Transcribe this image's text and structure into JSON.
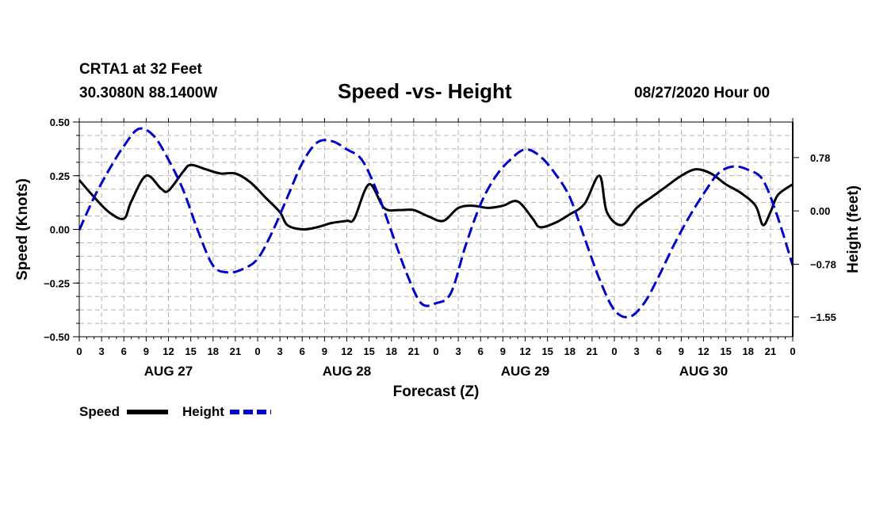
{
  "header": {
    "station": "CRTA1 at 32 Feet",
    "coords": "30.3080N 88.1400W",
    "title": "Speed -vs- Height",
    "datetime": "08/27/2020 Hour 00"
  },
  "colors": {
    "speed": "#000000",
    "height": "#0000cc",
    "grid": "#b4b4b4"
  },
  "chart_data": {
    "type": "line",
    "title": "Speed -vs- Height",
    "xlabel": "Forecast (Z)",
    "ylabel": "Speed (Knots)",
    "y2label": "Height (feet)",
    "xlim": [
      0,
      96
    ],
    "ylim": [
      -0.5,
      0.5
    ],
    "y2lim": [
      -1.84,
      1.3
    ],
    "x_tick_labels": [
      "0",
      "3",
      "6",
      "9",
      "12",
      "15",
      "18",
      "21",
      "0",
      "3",
      "6",
      "9",
      "12",
      "15",
      "18",
      "21",
      "0",
      "3",
      "6",
      "9",
      "12",
      "15",
      "18",
      "21",
      "0",
      "3",
      "6",
      "9",
      "12",
      "15",
      "18",
      "21",
      "0"
    ],
    "day_labels": [
      {
        "label": "AUG 27",
        "hour": 12
      },
      {
        "label": "AUG 28",
        "hour": 36
      },
      {
        "label": "AUG 29",
        "hour": 60
      },
      {
        "label": "AUG 30",
        "hour": 84
      }
    ],
    "y_ticks": [
      "0.50",
      "0.25",
      "0.00",
      "−0.25",
      "−0.50"
    ],
    "y_tick_values": [
      0.5,
      0.25,
      0.0,
      -0.25,
      -0.5
    ],
    "y2_ticks": [
      "0.78",
      "0.00",
      "−0.78",
      "−1.55"
    ],
    "y2_tick_values": [
      0.78,
      0.0,
      -0.78,
      -1.55
    ],
    "grid": true,
    "legend_placement": "bottom-left",
    "series": [
      {
        "name": "Speed",
        "axis": "left",
        "style": "solid",
        "x": [
          0,
          2,
          4,
          6,
          7,
          9,
          11,
          12,
          14,
          15,
          17,
          19,
          21,
          23,
          25,
          27,
          28,
          30,
          32,
          34,
          36,
          37,
          39,
          41,
          43,
          45,
          47,
          49,
          51,
          53,
          55,
          57,
          59,
          61,
          62,
          64,
          66,
          68,
          70,
          71,
          73,
          75,
          77,
          79,
          81,
          83,
          85,
          87,
          89,
          91,
          92,
          93,
          94,
          96
        ],
        "values": [
          0.23,
          0.15,
          0.08,
          0.05,
          0.13,
          0.25,
          0.19,
          0.18,
          0.27,
          0.3,
          0.28,
          0.26,
          0.26,
          0.22,
          0.15,
          0.08,
          0.02,
          0.0,
          0.01,
          0.03,
          0.04,
          0.05,
          0.21,
          0.1,
          0.09,
          0.09,
          0.06,
          0.04,
          0.1,
          0.11,
          0.1,
          0.11,
          0.13,
          0.05,
          0.01,
          0.03,
          0.07,
          0.12,
          0.25,
          0.08,
          0.02,
          0.1,
          0.15,
          0.2,
          0.25,
          0.28,
          0.26,
          0.21,
          0.17,
          0.11,
          0.02,
          0.08,
          0.16,
          0.21
        ]
      },
      {
        "name": "Height",
        "axis": "right",
        "style": "dashed",
        "x": [
          0,
          2,
          4,
          6,
          8,
          10,
          12,
          14,
          16,
          18,
          20,
          22,
          24,
          26,
          28,
          30,
          32,
          34,
          36,
          38,
          40,
          42,
          44,
          46,
          48,
          50,
          52,
          54,
          56,
          58,
          60,
          62,
          64,
          66,
          68,
          70,
          72,
          74,
          76,
          78,
          80,
          82,
          84,
          86,
          88,
          90,
          92,
          94,
          96
        ],
        "values": [
          -0.28,
          0.2,
          0.6,
          0.95,
          1.2,
          1.1,
          0.75,
          0.3,
          -0.3,
          -0.8,
          -0.9,
          -0.85,
          -0.7,
          -0.3,
          0.2,
          0.7,
          1.0,
          1.02,
          0.9,
          0.75,
          0.3,
          -0.3,
          -0.9,
          -1.35,
          -1.35,
          -1.2,
          -0.5,
          0.1,
          0.5,
          0.75,
          0.9,
          0.8,
          0.55,
          0.2,
          -0.4,
          -1.0,
          -1.45,
          -1.55,
          -1.35,
          -0.95,
          -0.5,
          -0.1,
          0.25,
          0.55,
          0.65,
          0.6,
          0.45,
          -0.1,
          -0.8
        ]
      }
    ]
  },
  "legend": {
    "speed_label": "Speed",
    "height_label": "Height"
  }
}
